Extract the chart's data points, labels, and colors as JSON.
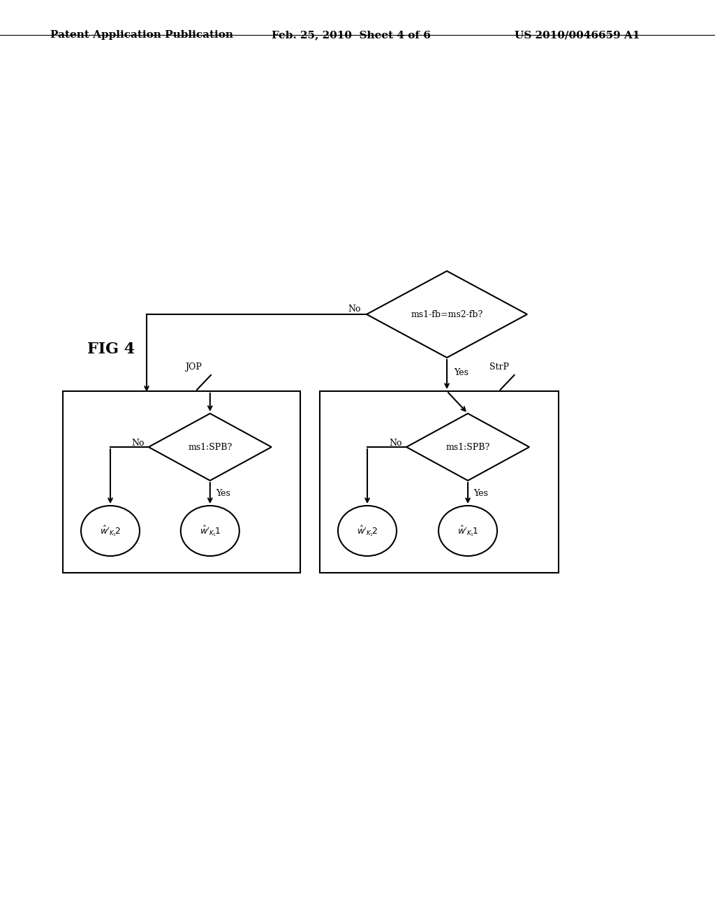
{
  "background_color": "#ffffff",
  "header_left": "Patent Application Publication",
  "header_mid": "Feb. 25, 2010  Sheet 4 of 6",
  "header_right": "US 2010/0046659 A1",
  "fig_label": "FIG 4",
  "top_diamond_text": "ms1-fb=ms2-fb?",
  "left_diamond_text": "ms1:SPB?",
  "right_diamond_text": "ms1:SPB?",
  "jop_label": "JOP",
  "strp_label": "StrP",
  "top_no_label": "No",
  "top_yes_label": "Yes",
  "left_no_label": "No",
  "left_yes_label": "Yes",
  "right_no_label": "No",
  "right_yes_label": "Yes",
  "font_size_header": 11,
  "font_size_fig": 16,
  "font_size_diamond": 9,
  "font_size_label": 9,
  "font_size_circle": 9
}
